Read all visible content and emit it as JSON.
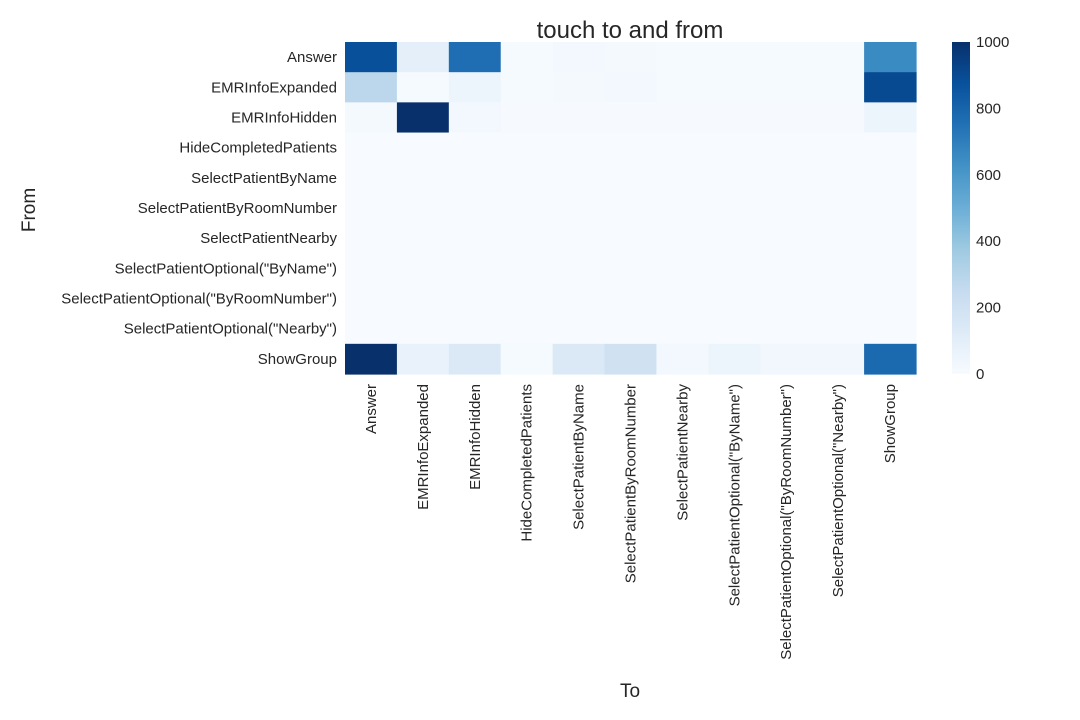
{
  "chart_data": {
    "type": "heatmap",
    "title": "touch to and from",
    "xlabel": "To",
    "ylabel": "From",
    "rows": [
      "Answer",
      "EMRInfoExpanded",
      "EMRInfoHidden",
      "HideCompletedPatients",
      "SelectPatientByName",
      "SelectPatientByRoomNumber",
      "SelectPatientNearby",
      "SelectPatientOptional(\"ByName\")",
      "SelectPatientOptional(\"ByRoomNumber\")",
      "SelectPatientOptional(\"Nearby\")",
      "ShowGroup"
    ],
    "columns": [
      "Answer",
      "EMRInfoExpanded",
      "EMRInfoHidden",
      "HideCompletedPatients",
      "SelectPatientByName",
      "SelectPatientByRoomNumber",
      "SelectPatientNearby",
      "SelectPatientOptional(\"ByName\")",
      "SelectPatientOptional(\"ByRoomNumber\")",
      "SelectPatientOptional(\"Nearby\")",
      "ShowGroup"
    ],
    "values": [
      [
        880,
        90,
        760,
        10,
        20,
        15,
        10,
        10,
        10,
        10,
        650
      ],
      [
        280,
        10,
        50,
        10,
        15,
        20,
        10,
        10,
        10,
        10,
        900
      ],
      [
        15,
        1000,
        20,
        5,
        5,
        5,
        5,
        5,
        5,
        5,
        50
      ],
      [
        0,
        0,
        0,
        0,
        0,
        0,
        0,
        0,
        0,
        0,
        0
      ],
      [
        0,
        0,
        0,
        0,
        0,
        0,
        0,
        0,
        0,
        0,
        0
      ],
      [
        0,
        0,
        0,
        0,
        0,
        0,
        0,
        0,
        0,
        0,
        0
      ],
      [
        0,
        0,
        0,
        0,
        0,
        0,
        0,
        0,
        0,
        0,
        0
      ],
      [
        0,
        0,
        0,
        0,
        0,
        0,
        0,
        0,
        0,
        0,
        0
      ],
      [
        0,
        0,
        0,
        0,
        0,
        0,
        0,
        0,
        0,
        0,
        0
      ],
      [
        0,
        0,
        0,
        0,
        0,
        0,
        0,
        0,
        0,
        0,
        0
      ],
      [
        1000,
        70,
        140,
        10,
        140,
        200,
        20,
        50,
        30,
        30,
        780
      ]
    ],
    "colorbar": {
      "range": [
        0,
        1000
      ],
      "ticks": [
        0,
        200,
        400,
        600,
        800,
        1000
      ]
    },
    "colormap": [
      "#f7fbff",
      "#deebf7",
      "#c6dbef",
      "#9ecae1",
      "#6baed6",
      "#4292c6",
      "#2171b5",
      "#08519c",
      "#08306b"
    ]
  }
}
